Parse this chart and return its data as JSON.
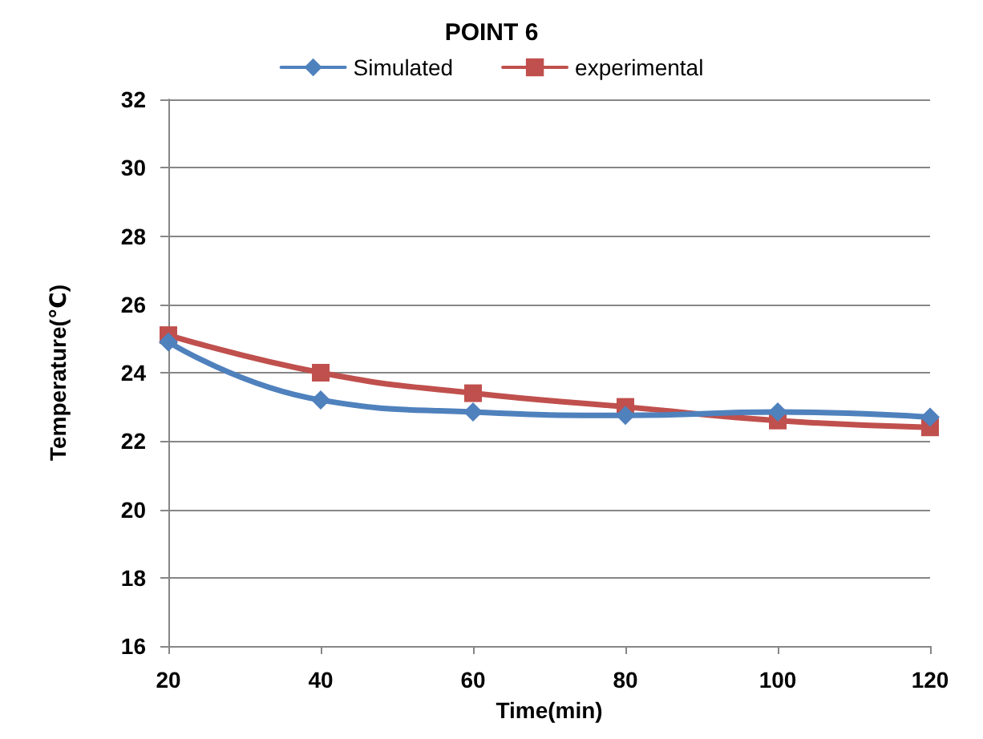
{
  "chart_data": {
    "type": "line",
    "title": "POINT 6",
    "xlabel": "Time(min)",
    "ylabel": "Temperature(℃)",
    "x": [
      20,
      40,
      60,
      80,
      100,
      120
    ],
    "series": [
      {
        "name": "Simulated",
        "color": "#4f81bd",
        "marker": "diamond",
        "values": [
          24.9,
          23.2,
          22.85,
          22.75,
          22.85,
          22.7
        ]
      },
      {
        "name": "experimental",
        "color": "#c0504d",
        "marker": "square",
        "values": [
          25.1,
          24.0,
          23.4,
          23.0,
          22.6,
          22.4
        ]
      }
    ],
    "xlim": [
      20,
      120
    ],
    "xticks": [
      20,
      40,
      60,
      80,
      100,
      120
    ],
    "ylim": [
      16,
      32
    ],
    "yticks": [
      16,
      18,
      20,
      22,
      24,
      26,
      28,
      30,
      32
    ],
    "grid": "y",
    "legend": "top",
    "line_style": "solid"
  }
}
